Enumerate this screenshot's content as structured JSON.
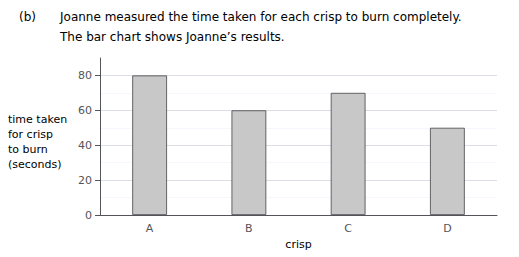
{
  "chart_data": {
    "type": "bar",
    "title": "Joanne measured the time taken for each crisp to burn completely.",
    "subtitle": "The bar chart shows Joanne’s results.",
    "annotations": [
      "(b)"
    ],
    "xlabel": "crisp",
    "ylabel": "time taken\nfor crisp\nto burn\n(seconds)",
    "categories": [
      "A",
      "B",
      "C",
      "D"
    ],
    "values": [
      80,
      60,
      70,
      50
    ],
    "color": "#c8c8c8",
    "ylim": [
      0,
      90
    ],
    "yticks": [
      0,
      20,
      40,
      60,
      80
    ],
    "grid": true
  }
}
